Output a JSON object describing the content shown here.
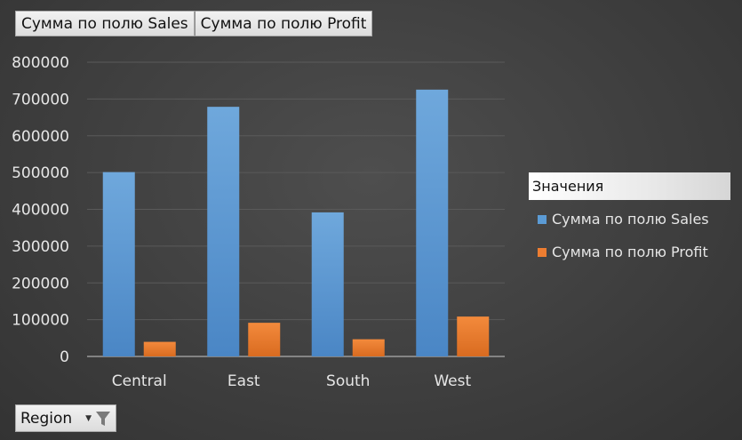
{
  "field_buttons": {
    "sales": "Сумма по полю Sales",
    "profit": "Сумма по полю Profit"
  },
  "filter": {
    "label": "Region",
    "icon": "filter-funnel-icon",
    "arrow_icon": "dropdown-arrow-icon"
  },
  "legend": {
    "title": "Значения",
    "items": [
      {
        "label": "Сумма по полю Sales",
        "color": "#5b9bd5"
      },
      {
        "label": "Сумма по полю Profit",
        "color": "#ed7d31"
      }
    ]
  },
  "colors": {
    "background": "#404040",
    "grid": "#5a5a5a",
    "axis_text": "#e6e6e6"
  },
  "chart_data": {
    "type": "bar",
    "categories": [
      "Central",
      "East",
      "South",
      "West"
    ],
    "series": [
      {
        "name": "Сумма по полю Sales",
        "values": [
          501240,
          678781,
          391722,
          725458
        ]
      },
      {
        "name": "Сумма по полю Profit",
        "values": [
          39706,
          91523,
          46749,
          108418
        ]
      }
    ],
    "ylim": [
      0,
      800000
    ],
    "yticks": [
      "0",
      "100000",
      "200000",
      "300000",
      "400000",
      "500000",
      "600000",
      "700000",
      "800000"
    ],
    "grid": true,
    "legend_position": "right"
  }
}
